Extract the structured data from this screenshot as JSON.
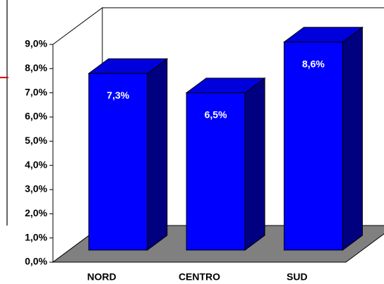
{
  "chart_data": {
    "type": "bar",
    "categories": [
      "NORD",
      "CENTRO",
      "SUD"
    ],
    "values": [
      7.3,
      6.5,
      8.6
    ],
    "value_labels": [
      "7,3%",
      "6,5%",
      "8,6%"
    ],
    "color": "#0000ff",
    "ylim": [
      0,
      9
    ],
    "yticks": [
      {
        "value": 0,
        "label": "0,0%"
      },
      {
        "value": 1,
        "label": "1,0%"
      },
      {
        "value": 2,
        "label": "2,0%"
      },
      {
        "value": 3,
        "label": "3,0%"
      },
      {
        "value": 4,
        "label": "4,0%"
      },
      {
        "value": 5,
        "label": "5,0%"
      },
      {
        "value": 6,
        "label": "6,0%"
      },
      {
        "value": 7,
        "label": "7,0%"
      },
      {
        "value": 8,
        "label": "8,0%"
      },
      {
        "value": 9,
        "label": "9,0%"
      }
    ]
  }
}
